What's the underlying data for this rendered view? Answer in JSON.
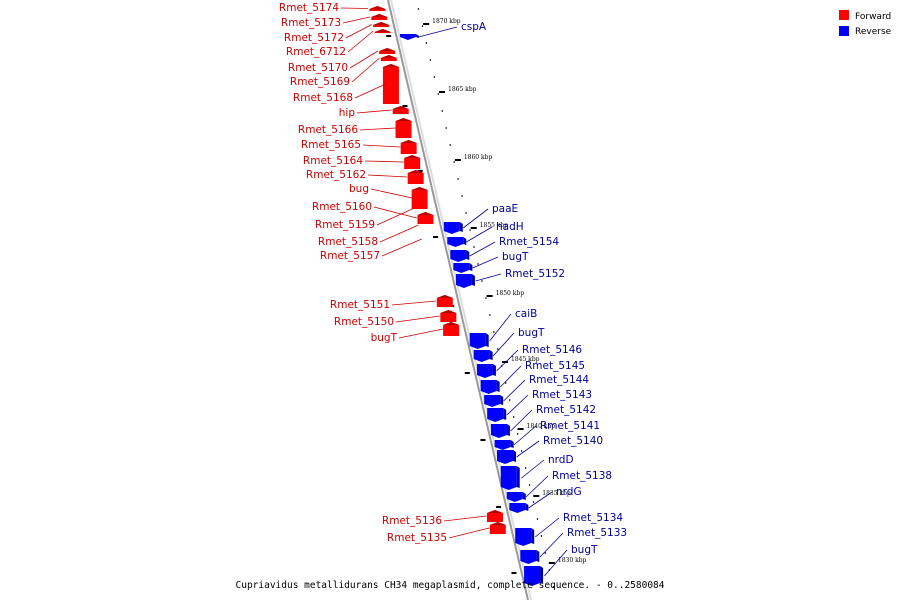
{
  "caption": "Cupriavidus metallidurans CH34 megaplasmid, complete sequence. - 0..2580084",
  "legend": [
    {
      "label": "Forward",
      "color": "#ff0000"
    },
    {
      "label": "Reverse",
      "color": "#0000ff"
    }
  ],
  "colors": {
    "forward": "#ff0000",
    "forward_dark": "#b80000",
    "reverse": "#0000ff",
    "reverse_dark": "#0000a8",
    "forward_label": "#cc0000",
    "reverse_label": "#000099",
    "backbone": "#999999"
  },
  "scale_labels": [
    "1870 kbp",
    "1865 kbp",
    "1860 kbp",
    "1855 kbp",
    "1850 kbp",
    "1845 kbp",
    "1840 kbp",
    "1835 kbp",
    "1830 kbp"
  ],
  "genes": [
    {
      "name": "Rmet_5174",
      "strand": "forward"
    },
    {
      "name": "Rmet_5173",
      "strand": "forward"
    },
    {
      "name": "Rmet_5172",
      "strand": "forward"
    },
    {
      "name": "Rmet_6712",
      "strand": "forward"
    },
    {
      "name": "Rmet_5170",
      "strand": "forward"
    },
    {
      "name": "Rmet_5169",
      "strand": "forward"
    },
    {
      "name": "Rmet_5168",
      "strand": "forward"
    },
    {
      "name": "hip",
      "strand": "forward"
    },
    {
      "name": "Rmet_5166",
      "strand": "forward"
    },
    {
      "name": "Rmet_5165",
      "strand": "forward"
    },
    {
      "name": "Rmet_5164",
      "strand": "forward"
    },
    {
      "name": "Rmet_5162",
      "strand": "forward"
    },
    {
      "name": "bug",
      "strand": "forward"
    },
    {
      "name": "Rmet_5160",
      "strand": "forward"
    },
    {
      "name": "Rmet_5159",
      "strand": "forward"
    },
    {
      "name": "Rmet_5158",
      "strand": "forward"
    },
    {
      "name": "Rmet_5157",
      "strand": "forward"
    },
    {
      "name": "Rmet_5151",
      "strand": "forward"
    },
    {
      "name": "Rmet_5150",
      "strand": "forward"
    },
    {
      "name": "bugT",
      "strand": "forward"
    },
    {
      "name": "Rmet_5136",
      "strand": "forward"
    },
    {
      "name": "Rmet_5135",
      "strand": "forward"
    },
    {
      "name": "cspA",
      "strand": "reverse"
    },
    {
      "name": "paaE",
      "strand": "reverse"
    },
    {
      "name": "hadH",
      "strand": "reverse"
    },
    {
      "name": "Rmet_5154",
      "strand": "reverse"
    },
    {
      "name": "bugT",
      "strand": "reverse"
    },
    {
      "name": "Rmet_5152",
      "strand": "reverse"
    },
    {
      "name": "caiB",
      "strand": "reverse"
    },
    {
      "name": "bugT",
      "strand": "reverse"
    },
    {
      "name": "Rmet_5146",
      "strand": "reverse"
    },
    {
      "name": "Rmet_5145",
      "strand": "reverse"
    },
    {
      "name": "Rmet_5144",
      "strand": "reverse"
    },
    {
      "name": "Rmet_5143",
      "strand": "reverse"
    },
    {
      "name": "Rmet_5142",
      "strand": "reverse"
    },
    {
      "name": "Rmet_5141",
      "strand": "reverse"
    },
    {
      "name": "Rmet_5140",
      "strand": "reverse"
    },
    {
      "name": "nrdD",
      "strand": "reverse"
    },
    {
      "name": "Rmet_5138",
      "strand": "reverse"
    },
    {
      "name": "nrdG",
      "strand": "reverse"
    },
    {
      "name": "Rmet_5134",
      "strand": "reverse"
    },
    {
      "name": "Rmet_5133",
      "strand": "reverse"
    },
    {
      "name": "bugT",
      "strand": "reverse"
    }
  ]
}
